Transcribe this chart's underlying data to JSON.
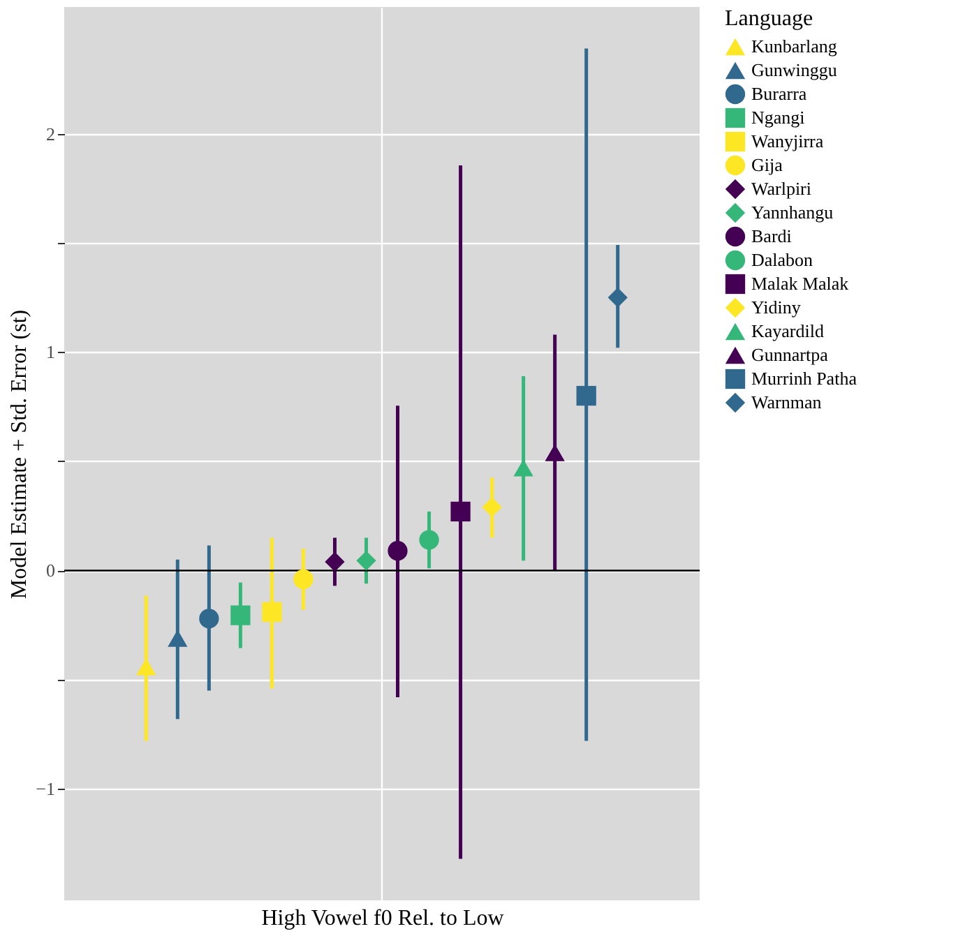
{
  "chart_data": {
    "type": "scatter",
    "xlabel": "High Vowel f0 Rel. to Low",
    "ylabel": "Model Estimate + Std. Error (st)",
    "legend_title": "Language",
    "categories": [
      null
    ],
    "ylim": [
      -1.51,
      2.58
    ],
    "yticks": [
      {
        "value": -1,
        "label": "−1"
      },
      {
        "value": -0.5,
        "label": null
      },
      0,
      {
        "value": 0.5,
        "label": null
      },
      1,
      {
        "value": 1.5,
        "label": null
      },
      2
    ],
    "grid": true,
    "legend": "right",
    "tick_labels": "y",
    "ref_lines": [
      {
        "axis": "y",
        "value": 0,
        "color": "#000000"
      }
    ],
    "series": [
      {
        "name": "Kunbarlang",
        "color": "#fde725",
        "marker": "triangle",
        "values": [
          -0.44
        ],
        "errors": [
          [
            -0.78,
            -0.115
          ]
        ]
      },
      {
        "name": "Gunwinggu",
        "color": "#31688e",
        "marker": "triangle",
        "values": [
          -0.31
        ],
        "errors": [
          [
            -0.68,
            0.05
          ]
        ]
      },
      {
        "name": "Burarra",
        "color": "#31688e",
        "marker": "circle",
        "values": [
          -0.22
        ],
        "errors": [
          [
            -0.55,
            0.115
          ]
        ]
      },
      {
        "name": "Ngangi",
        "color": "#35b779",
        "marker": "square",
        "values": [
          -0.205
        ],
        "errors": [
          [
            -0.355,
            -0.055
          ]
        ]
      },
      {
        "name": "Wanyjirra",
        "color": "#fde725",
        "marker": "square",
        "values": [
          -0.19
        ],
        "errors": [
          [
            -0.54,
            0.15
          ]
        ]
      },
      {
        "name": "Gija",
        "color": "#fde725",
        "marker": "circle",
        "values": [
          -0.04
        ],
        "errors": [
          [
            -0.18,
            0.1
          ]
        ]
      },
      {
        "name": "Warlpiri",
        "color": "#440154",
        "marker": "diamond",
        "values": [
          0.04
        ],
        "errors": [
          [
            -0.07,
            0.15
          ]
        ]
      },
      {
        "name": "Yannhangu",
        "color": "#35b779",
        "marker": "diamond",
        "values": [
          0.045
        ],
        "errors": [
          [
            -0.06,
            0.15
          ]
        ]
      },
      {
        "name": "Bardi",
        "color": "#440154",
        "marker": "circle",
        "values": [
          0.09
        ],
        "errors": [
          [
            -0.58,
            0.755
          ]
        ]
      },
      {
        "name": "Dalabon",
        "color": "#35b779",
        "marker": "circle",
        "values": [
          0.14
        ],
        "errors": [
          [
            0.01,
            0.27
          ]
        ]
      },
      {
        "name": "Malak Malak",
        "color": "#440154",
        "marker": "square",
        "values": [
          0.27
        ],
        "errors": [
          [
            -1.32,
            1.855
          ]
        ]
      },
      {
        "name": "Yidiny",
        "color": "#fde725",
        "marker": "diamond",
        "values": [
          0.29
        ],
        "errors": [
          [
            0.15,
            0.425
          ]
        ]
      },
      {
        "name": "Kayardild",
        "color": "#35b779",
        "marker": "triangle",
        "values": [
          0.47
        ],
        "errors": [
          [
            0.045,
            0.89
          ]
        ]
      },
      {
        "name": "Gunnartpa",
        "color": "#440154",
        "marker": "triangle",
        "values": [
          0.54
        ],
        "errors": [
          [
            0.0,
            1.08
          ]
        ]
      },
      {
        "name": "Murrinh Patha",
        "color": "#31688e",
        "marker": "square",
        "values": [
          0.8
        ],
        "errors": [
          [
            -0.78,
            2.39
          ]
        ]
      },
      {
        "name": "Warnman",
        "color": "#31688e",
        "marker": "diamond",
        "values": [
          1.25
        ],
        "errors": [
          [
            1.02,
            1.49
          ]
        ]
      }
    ]
  }
}
